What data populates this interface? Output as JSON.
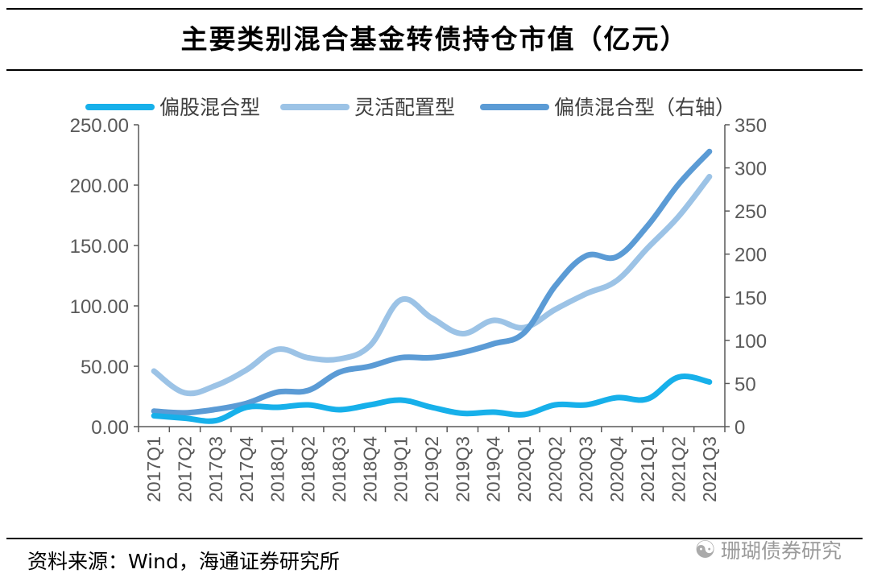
{
  "header": {
    "title": "主要类别混合基金转债持仓市值（亿元）"
  },
  "footer": {
    "source": "资料来源：Wind，海通证券研究所",
    "watermark": "珊瑚债券研究",
    "watermark_icon": "wechat-icon"
  },
  "chart_data": {
    "type": "line",
    "title": "主要类别混合基金转债持仓市值（亿元）",
    "categories": [
      "2017Q1",
      "2017Q2",
      "2017Q3",
      "2017Q4",
      "2018Q1",
      "2018Q2",
      "2018Q3",
      "2018Q4",
      "2019Q1",
      "2019Q2",
      "2019Q3",
      "2019Q4",
      "2020Q1",
      "2020Q2",
      "2020Q3",
      "2020Q4",
      "2021Q1",
      "2021Q2",
      "2021Q3"
    ],
    "y_left": {
      "ylim": [
        0,
        250
      ],
      "ticks": [
        "0.00",
        "50.00",
        "100.00",
        "150.00",
        "200.00",
        "250.00"
      ],
      "tick_values": [
        0,
        50,
        100,
        150,
        200,
        250
      ]
    },
    "y_right": {
      "ylim": [
        0,
        350
      ],
      "ticks": [
        "0",
        "50",
        "100",
        "150",
        "200",
        "250",
        "300",
        "350"
      ],
      "tick_values": [
        0,
        50,
        100,
        150,
        200,
        250,
        300,
        350
      ]
    },
    "legend_position": "top",
    "series": [
      {
        "name": "偏股混合型",
        "axis": "left",
        "color": "#17b0ea",
        "values": [
          9,
          7,
          5,
          16,
          16,
          18,
          14,
          18,
          22,
          16,
          11,
          12,
          10,
          18,
          18,
          24,
          23,
          41,
          37
        ]
      },
      {
        "name": "灵活配置型",
        "axis": "left",
        "color": "#9cc3e6",
        "values": [
          46,
          28,
          34,
          47,
          64,
          57,
          56,
          67,
          105,
          90,
          77,
          88,
          82,
          97,
          110,
          121,
          148,
          174,
          207
        ]
      },
      {
        "name": "偏债混合型（右轴）",
        "axis": "right",
        "color": "#5b9bd5",
        "values": [
          18,
          16,
          20,
          27,
          40,
          42,
          63,
          70,
          80,
          80,
          86,
          96,
          109,
          163,
          198,
          197,
          233,
          281,
          319
        ]
      }
    ]
  }
}
